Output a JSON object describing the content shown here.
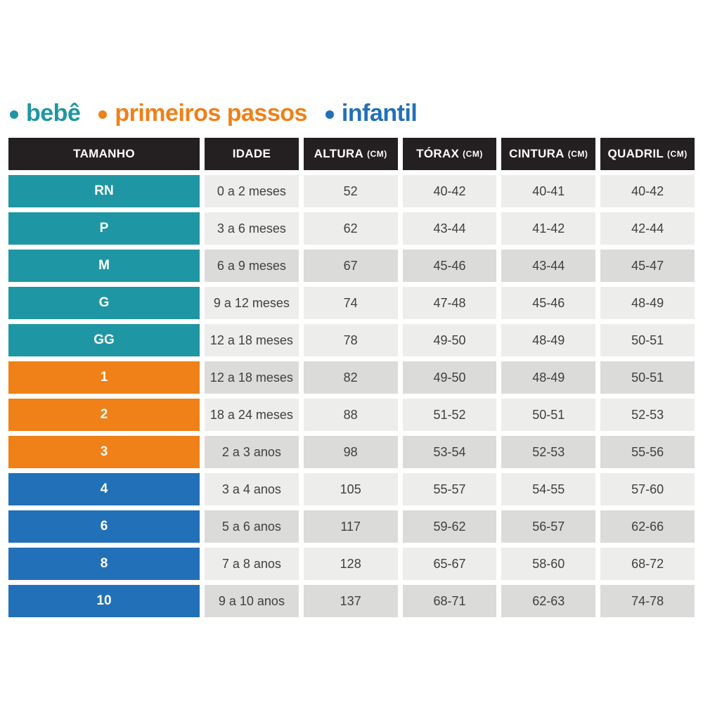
{
  "colors": {
    "bebe": "#1f96a3",
    "primeiros_passos": "#f08018",
    "infantil": "#2270b8",
    "header_bg": "#242021",
    "header_text": "#ffffff",
    "cell_light": "#ededeb",
    "cell_dark": "#dbdbd9",
    "cell_text": "#3f4040",
    "page_bg": "#ffffff"
  },
  "legend": {
    "items": [
      {
        "key": "bebe",
        "label": "bebê"
      },
      {
        "key": "primeiros_passos",
        "label": "primeiros passos"
      },
      {
        "key": "infantil",
        "label": "infantil"
      }
    ]
  },
  "chart_data": {
    "type": "table",
    "title": "",
    "columns": [
      {
        "key": "tamanho",
        "label": "TAMANHO",
        "unit": ""
      },
      {
        "key": "idade",
        "label": "IDADE",
        "unit": ""
      },
      {
        "key": "altura",
        "label": "ALTURA",
        "unit": "(CM)"
      },
      {
        "key": "torax",
        "label": "TÓRAX",
        "unit": "(CM)"
      },
      {
        "key": "cintura",
        "label": "CINTURA",
        "unit": "(CM)"
      },
      {
        "key": "quadril",
        "label": "QUADRIL",
        "unit": "(CM)"
      }
    ],
    "rows": [
      {
        "group": "bebe",
        "shade": "light",
        "cells": [
          "RN",
          "0 a 2 meses",
          "52",
          "40-42",
          "40-41",
          "40-42"
        ]
      },
      {
        "group": "bebe",
        "shade": "light",
        "cells": [
          "P",
          "3 a 6 meses",
          "62",
          "43-44",
          "41-42",
          "42-44"
        ]
      },
      {
        "group": "bebe",
        "shade": "dark",
        "cells": [
          "M",
          "6 a 9 meses",
          "67",
          "45-46",
          "43-44",
          "45-47"
        ]
      },
      {
        "group": "bebe",
        "shade": "light",
        "cells": [
          "G",
          "9 a 12 meses",
          "74",
          "47-48",
          "45-46",
          "48-49"
        ]
      },
      {
        "group": "bebe",
        "shade": "light",
        "cells": [
          "GG",
          "12 a 18 meses",
          "78",
          "49-50",
          "48-49",
          "50-51"
        ]
      },
      {
        "group": "primeiros_passos",
        "shade": "dark",
        "cells": [
          "1",
          "12 a 18 meses",
          "82",
          "49-50",
          "48-49",
          "50-51"
        ]
      },
      {
        "group": "primeiros_passos",
        "shade": "light",
        "cells": [
          "2",
          "18 a 24 meses",
          "88",
          "51-52",
          "50-51",
          "52-53"
        ]
      },
      {
        "group": "primeiros_passos",
        "shade": "dark",
        "cells": [
          "3",
          "2 a 3 anos",
          "98",
          "53-54",
          "52-53",
          "55-56"
        ]
      },
      {
        "group": "infantil",
        "shade": "light",
        "cells": [
          "4",
          "3 a 4 anos",
          "105",
          "55-57",
          "54-55",
          "57-60"
        ]
      },
      {
        "group": "infantil",
        "shade": "dark",
        "cells": [
          "6",
          "5 a 6 anos",
          "117",
          "59-62",
          "56-57",
          "62-66"
        ]
      },
      {
        "group": "infantil",
        "shade": "light",
        "cells": [
          "8",
          "7 a 8 anos",
          "128",
          "65-67",
          "58-60",
          "68-72"
        ]
      },
      {
        "group": "infantil",
        "shade": "dark",
        "cells": [
          "10",
          "9 a 10 anos",
          "137",
          "68-71",
          "62-63",
          "74-78"
        ]
      }
    ]
  }
}
